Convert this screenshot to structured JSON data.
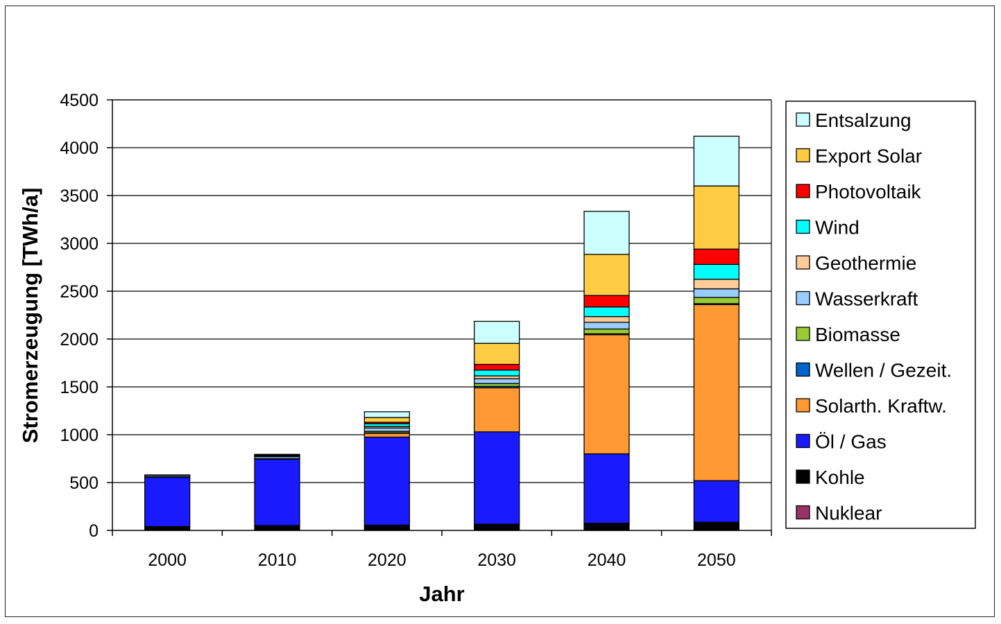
{
  "chart_data": {
    "type": "bar",
    "stacked": true,
    "title": "",
    "xlabel": "Jahr",
    "ylabel": "Stromerzeugung [TWh/a]",
    "ylim": [
      0,
      4500
    ],
    "yticks": [
      "0",
      "500",
      "1000",
      "1500",
      "2000",
      "2500",
      "3000",
      "3500",
      "4000",
      "4500"
    ],
    "grid": true,
    "legend_position": "right",
    "categories": [
      "2000",
      "2010",
      "2020",
      "2030",
      "2040",
      "2050"
    ],
    "series": [
      {
        "name": "Nuklear",
        "color": "#993366",
        "values": [
          0,
          0,
          0,
          0,
          0,
          0
        ]
      },
      {
        "name": "Kohle",
        "color": "#000000",
        "values": [
          40,
          50,
          55,
          65,
          75,
          85
        ]
      },
      {
        "name": "Öl / Gas",
        "color": "#1a1aff",
        "values": [
          515,
          695,
          920,
          965,
          725,
          435
        ]
      },
      {
        "name": "Solarth. Kraftw.",
        "color": "#ff9933",
        "values": [
          0,
          0,
          40,
          460,
          1245,
          1840
        ]
      },
      {
        "name": "Wellen / Gezeit.",
        "color": "#0066cc",
        "values": [
          0,
          0,
          5,
          15,
          10,
          10
        ]
      },
      {
        "name": "Biomasse",
        "color": "#99cc33",
        "values": [
          5,
          5,
          15,
          30,
          50,
          65
        ]
      },
      {
        "name": "Wasserkraft",
        "color": "#99ccff",
        "values": [
          15,
          20,
          35,
          50,
          70,
          90
        ]
      },
      {
        "name": "Geothermie",
        "color": "#ffcc99",
        "values": [
          0,
          5,
          15,
          30,
          60,
          100
        ]
      },
      {
        "name": "Wind",
        "color": "#00ffff",
        "values": [
          5,
          10,
          30,
          60,
          100,
          155
        ]
      },
      {
        "name": "Photovoltaik",
        "color": "#ff0000",
        "values": [
          0,
          5,
          15,
          60,
          120,
          160
        ]
      },
      {
        "name": "Export Solar",
        "color": "#ffcc44",
        "values": [
          0,
          0,
          50,
          220,
          430,
          660
        ]
      },
      {
        "name": "Entsalzung",
        "color": "#ccffff",
        "values": [
          0,
          5,
          60,
          230,
          450,
          520
        ]
      }
    ]
  }
}
